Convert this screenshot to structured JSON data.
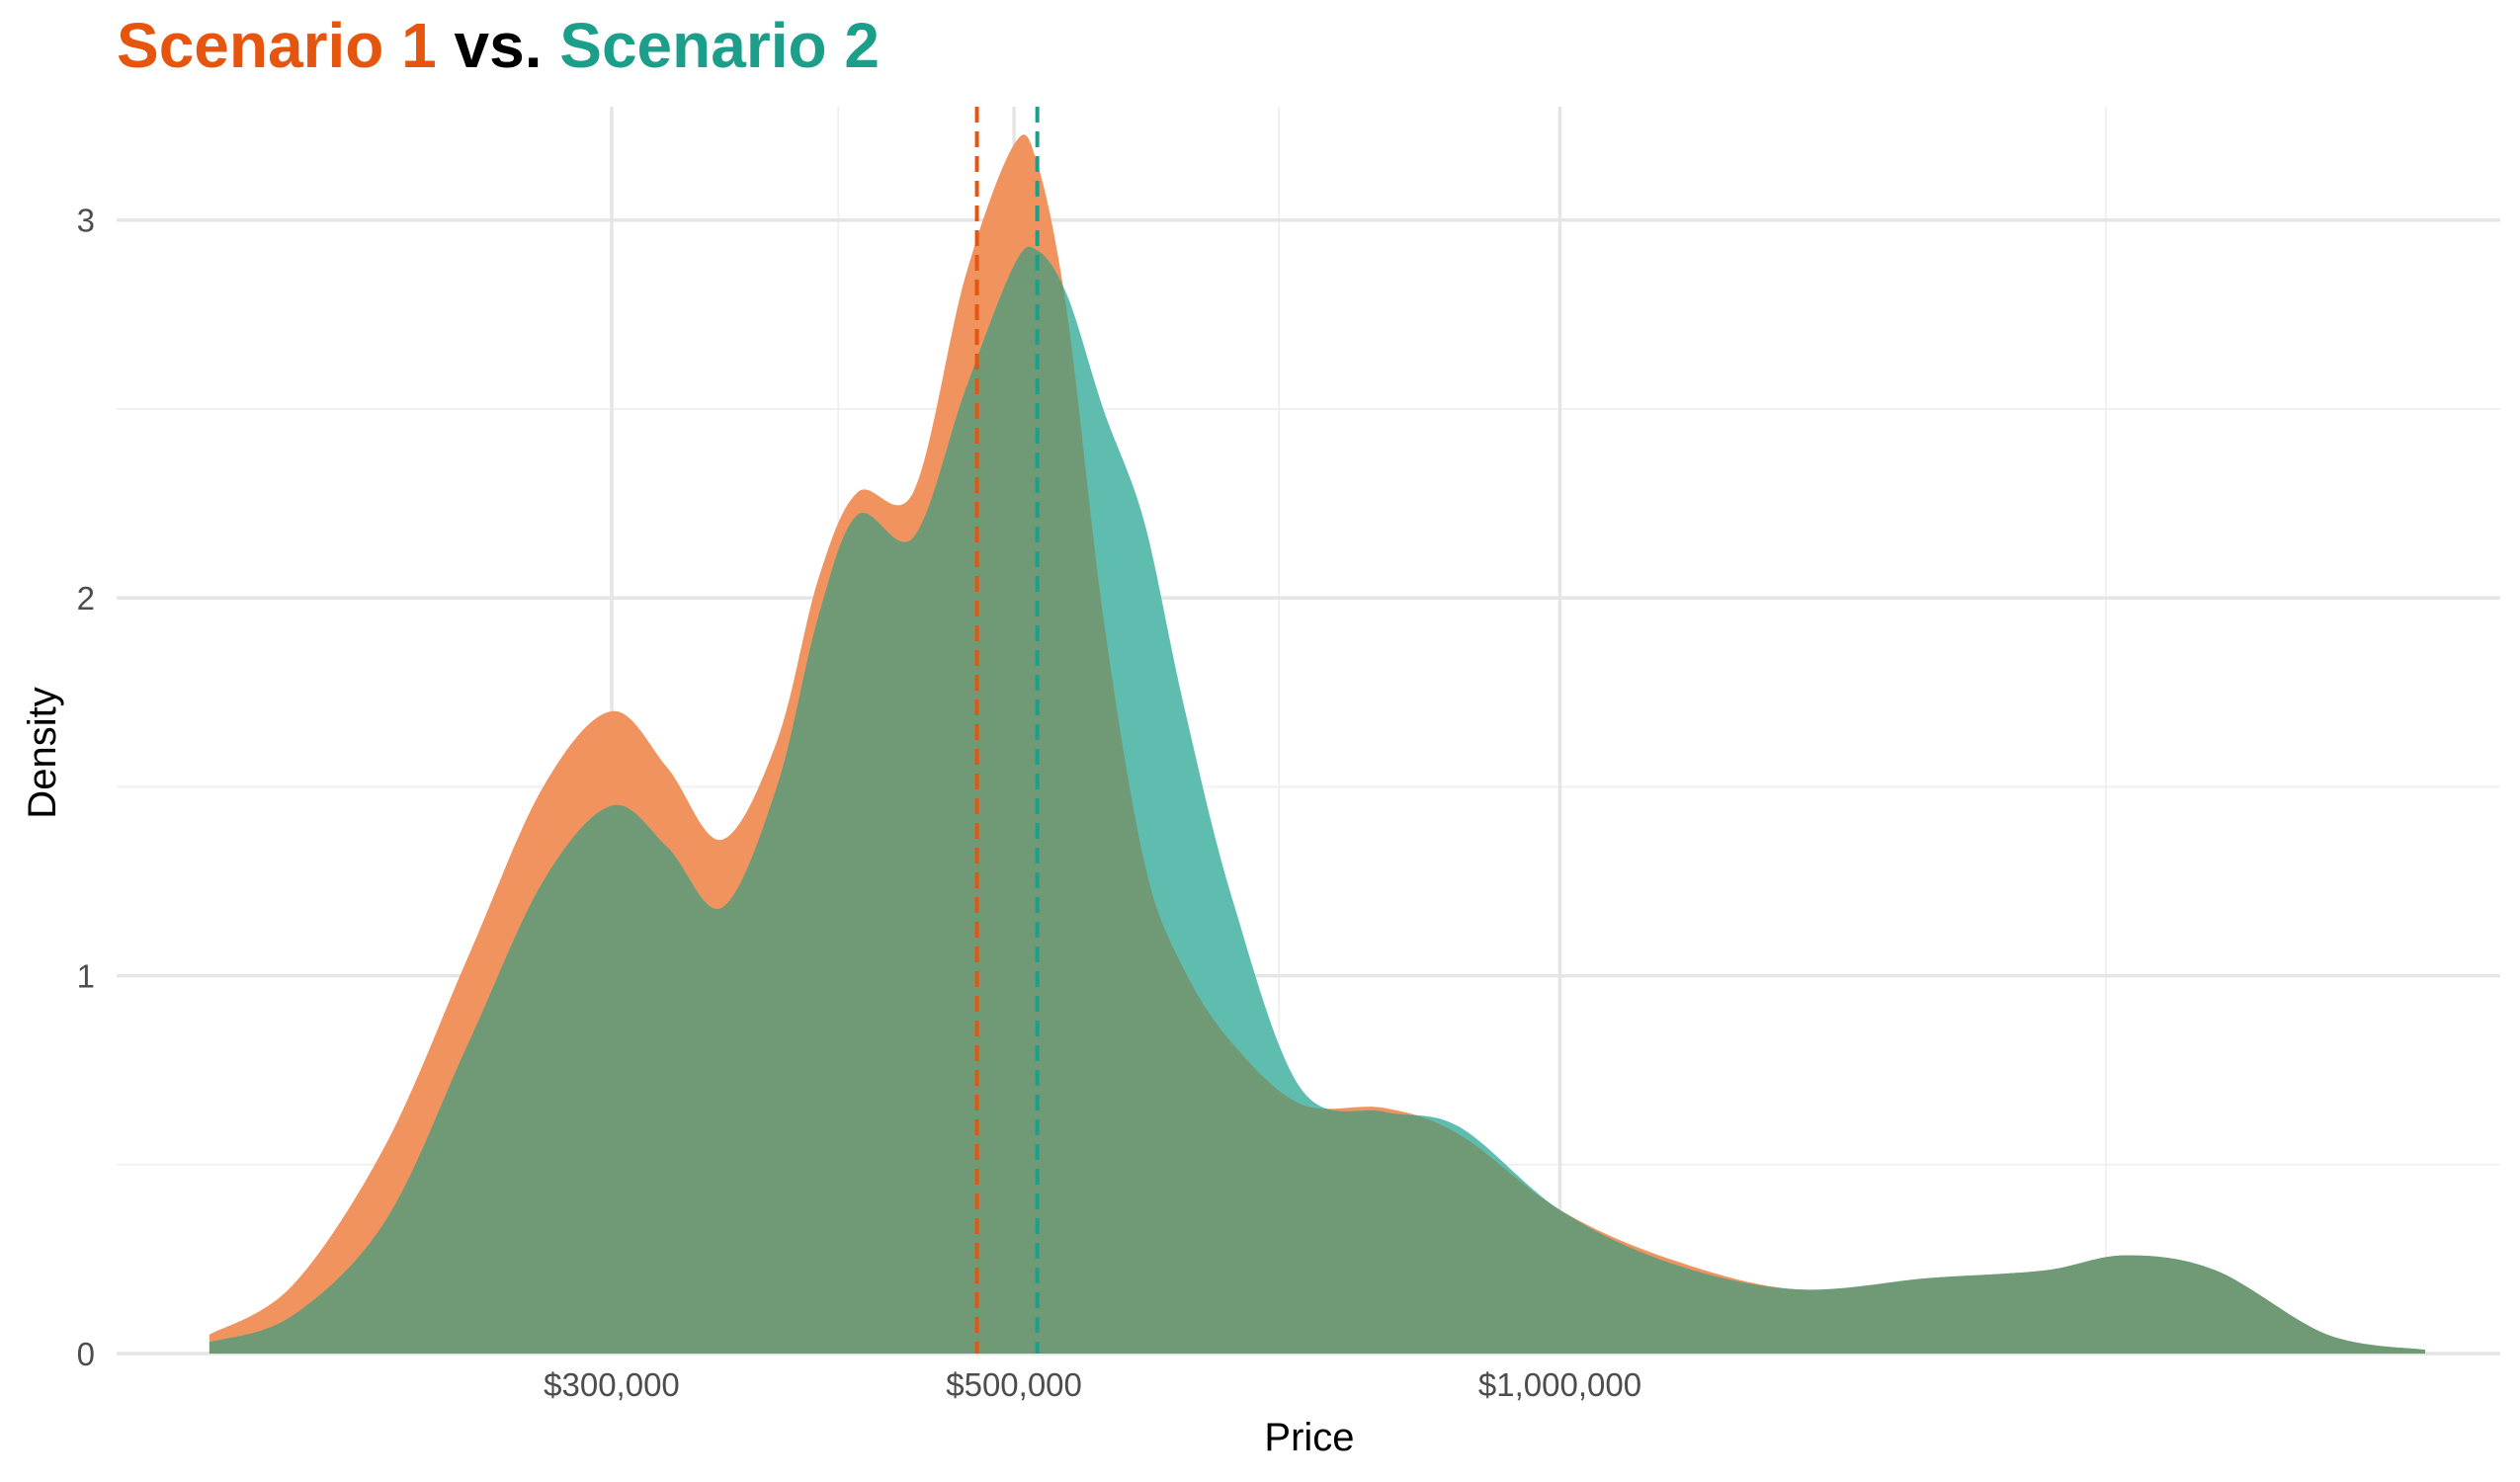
{
  "title": {
    "part1": "Scenario 1",
    "part2": " vs. ",
    "part3": "Scenario 2"
  },
  "colors": {
    "scenario1": "#e6550d",
    "scenario2": "#1b9e8a",
    "scenario1_fill": "#f0935e",
    "scenario2_fill": "#5fbdb0",
    "overlap_fill": "#709a76",
    "title_vs": "#000000"
  },
  "chart_data": {
    "type": "area",
    "xlabel": "Price",
    "ylabel": "Density",
    "x_scale": "log10",
    "xlim": [
      160000,
      3300000
    ],
    "ylim": [
      0,
      3.3
    ],
    "x_ticks": [
      {
        "value": 300000,
        "label": "$300,000"
      },
      {
        "value": 500000,
        "label": "$500,000"
      },
      {
        "value": 1000000,
        "label": "$1,000,000"
      }
    ],
    "x_minor": [
      400000,
      700000,
      2000000
    ],
    "y_ticks": [
      {
        "value": 0,
        "label": "0"
      },
      {
        "value": 1,
        "label": "1"
      },
      {
        "value": 2,
        "label": "2"
      },
      {
        "value": 3,
        "label": "3"
      }
    ],
    "y_minor": [
      0.5,
      1.5,
      2.5
    ],
    "grid": true,
    "series": [
      {
        "key": "scenario1",
        "x": [
          180000,
          200000,
          225000,
          250000,
          275000,
          300000,
          322000,
          345000,
          370000,
          390000,
          410000,
          440000,
          470000,
          500000,
          515000,
          535000,
          560000,
          590000,
          620000,
          660000,
          720000,
          800000,
          880000,
          1000000,
          1150000,
          1350000,
          1600000,
          1850000,
          2050000,
          2300000,
          2650000,
          3000000
        ],
        "y": [
          0.05,
          0.18,
          0.55,
          1.05,
          1.5,
          1.7,
          1.55,
          1.36,
          1.62,
          2.05,
          2.28,
          2.28,
          2.85,
          3.2,
          3.15,
          2.75,
          1.95,
          1.3,
          1.02,
          0.82,
          0.66,
          0.65,
          0.58,
          0.38,
          0.25,
          0.17,
          0.2,
          0.22,
          0.26,
          0.22,
          0.05,
          0.01
        ],
        "mean_line": 477000
      },
      {
        "key": "scenario2",
        "x": [
          180000,
          200000,
          225000,
          250000,
          275000,
          300000,
          322000,
          345000,
          370000,
          390000,
          410000,
          440000,
          470000,
          500000,
          515000,
          535000,
          560000,
          590000,
          620000,
          660000,
          720000,
          800000,
          880000,
          1000000,
          1150000,
          1350000,
          1600000,
          1850000,
          2050000,
          2300000,
          2650000,
          3000000
        ],
        "y": [
          0.03,
          0.1,
          0.35,
          0.82,
          1.25,
          1.45,
          1.34,
          1.18,
          1.5,
          1.95,
          2.22,
          2.16,
          2.55,
          2.88,
          2.92,
          2.8,
          2.5,
          2.2,
          1.72,
          1.2,
          0.7,
          0.64,
          0.6,
          0.38,
          0.24,
          0.17,
          0.2,
          0.22,
          0.26,
          0.22,
          0.05,
          0.01
        ],
        "mean_line": 515000
      }
    ]
  }
}
